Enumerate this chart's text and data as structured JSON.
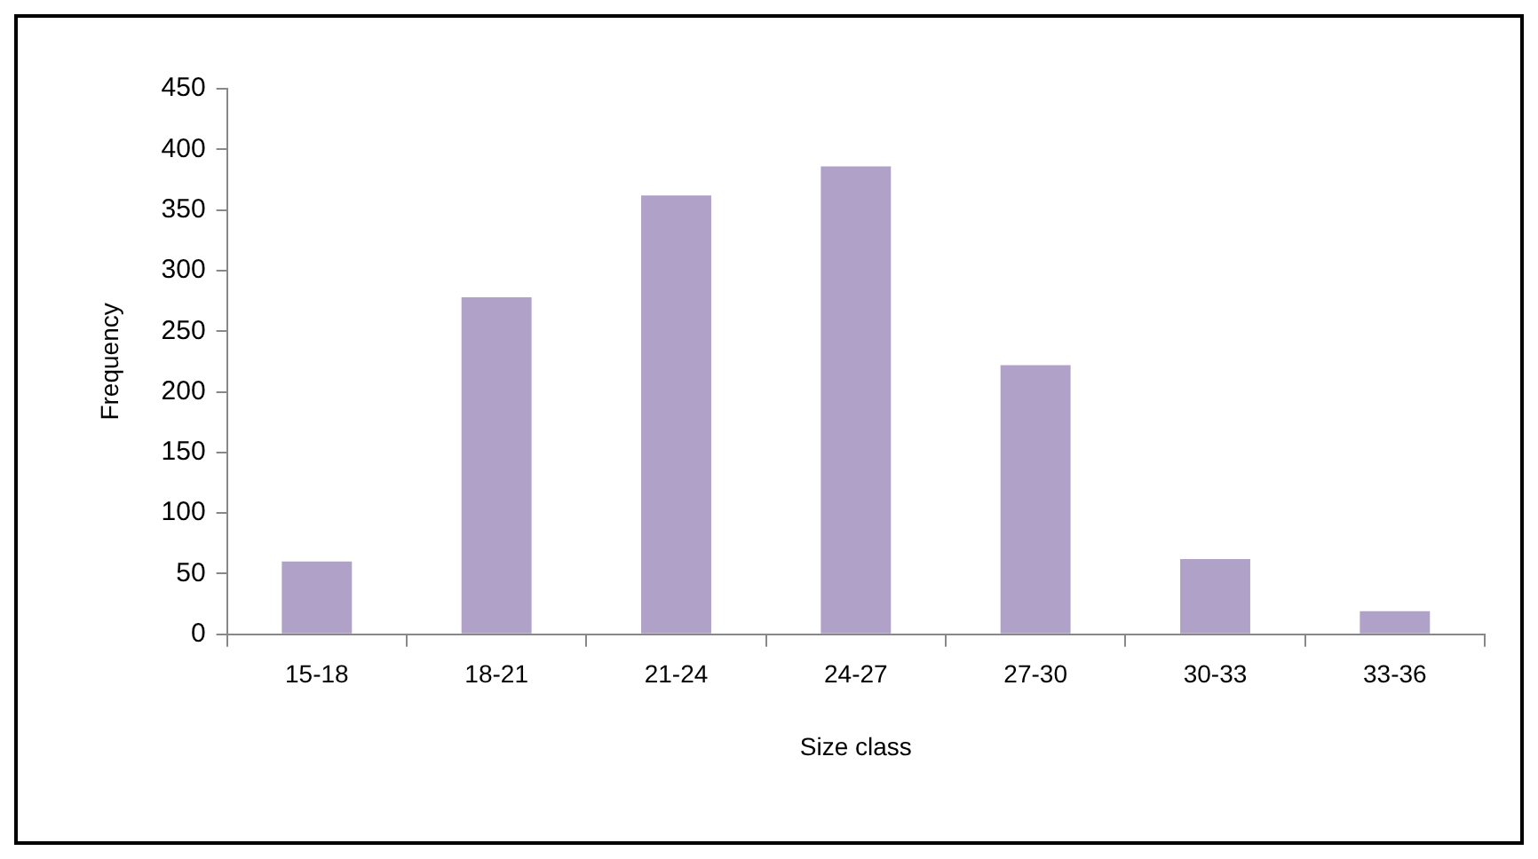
{
  "chart_data": {
    "type": "bar",
    "xlabel": "Size class",
    "ylabel": "Frequency",
    "categories": [
      "15-18",
      "18-21",
      "21-24",
      "24-27",
      "27-30",
      "30-33",
      "33-36"
    ],
    "values": [
      60,
      278,
      362,
      386,
      222,
      62,
      19
    ],
    "color": "#b0a1c8",
    "ylim": [
      0,
      450
    ],
    "yticks": [
      0,
      50,
      100,
      150,
      200,
      250,
      300,
      350,
      400,
      450
    ],
    "grid": false,
    "legend": false
  }
}
